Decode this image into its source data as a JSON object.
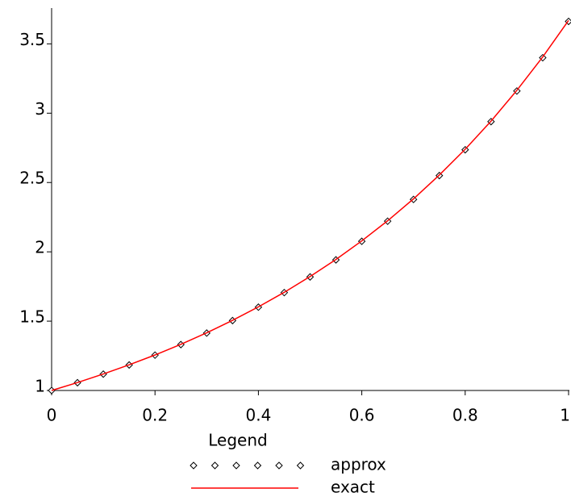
{
  "chart_data": {
    "type": "line",
    "legend_title": "Legend",
    "xlim": [
      0,
      1
    ],
    "xticks": [
      0,
      0.2,
      0.4,
      0.6,
      0.8,
      1
    ],
    "ylim": [
      1,
      3.7
    ],
    "yticks": [
      1,
      1.5,
      2,
      2.5,
      3,
      3.5
    ],
    "legend": "bottom",
    "series": [
      {
        "name": "approx",
        "color": "#000000",
        "marker": "diamond",
        "x": [
          0,
          0.05,
          0.1,
          0.15,
          0.2,
          0.25,
          0.3,
          0.35,
          0.4,
          0.45,
          0.5,
          0.55,
          0.6,
          0.65,
          0.7,
          0.75,
          0.8,
          0.85,
          0.9,
          0.95,
          1
        ],
        "values": [
          1,
          1.056,
          1.118,
          1.184,
          1.255,
          1.331,
          1.414,
          1.504,
          1.601,
          1.706,
          1.819,
          1.942,
          2.076,
          2.221,
          2.378,
          2.55,
          2.736,
          2.939,
          3.16,
          3.4,
          3.662
        ]
      },
      {
        "name": "exact",
        "color": "#ff0000",
        "marker": "none",
        "x": [
          0,
          0.05,
          0.1,
          0.15,
          0.2,
          0.25,
          0.3,
          0.35,
          0.4,
          0.45,
          0.5,
          0.55,
          0.6,
          0.65,
          0.7,
          0.75,
          0.8,
          0.85,
          0.9,
          0.95,
          1
        ],
        "values": [
          1,
          1.057,
          1.119,
          1.185,
          1.256,
          1.333,
          1.416,
          1.506,
          1.603,
          1.708,
          1.822,
          1.945,
          2.079,
          2.224,
          2.382,
          2.554,
          2.74,
          2.943,
          3.165,
          3.406,
          3.669
        ]
      }
    ]
  }
}
